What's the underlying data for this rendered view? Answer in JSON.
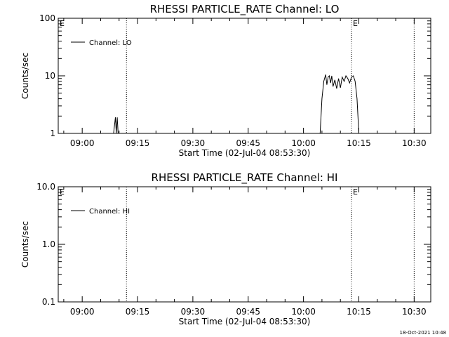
{
  "timestamp": "18-Oct-2021 10:48",
  "chart_data": [
    {
      "type": "line",
      "title": "RHESSI PARTICLE_RATE Channel: LO",
      "xlabel": "Start Time (02-Jul-04 08:53:30)",
      "ylabel": "Counts/sec",
      "yscale": "log",
      "xlim": [
        "08:53:30",
        "10:34:30"
      ],
      "ylim": [
        1,
        100
      ],
      "xticks": [
        "09:00",
        "09:15",
        "09:30",
        "09:45",
        "10:00",
        "10:15",
        "10:30"
      ],
      "yticks": [
        "1",
        "10",
        "100"
      ],
      "legend": {
        "position": "top-left",
        "entries": [
          "Channel: LO"
        ]
      },
      "vlines": [
        "09:12:00",
        "10:13:00",
        "10:30:00"
      ],
      "markers": [
        {
          "x": "08:53:30",
          "label": "E"
        },
        {
          "x": "10:13:00",
          "label": "E"
        }
      ],
      "series": [
        {
          "name": "Channel: LO",
          "points": [
            [
              "09:08:30",
              1.0
            ],
            [
              "09:09:00",
              1.9
            ],
            [
              "09:09:15",
              1.0
            ],
            [
              "09:09:30",
              1.9
            ],
            [
              "09:09:45",
              1.0
            ],
            [
              "10:04:30",
              1.0
            ],
            [
              "10:05:00",
              4.0
            ],
            [
              "10:05:30",
              8.0
            ],
            [
              "10:06:00",
              10.5
            ],
            [
              "10:06:20",
              7.0
            ],
            [
              "10:06:40",
              9.5
            ],
            [
              "10:07:00",
              10.0
            ],
            [
              "10:07:20",
              7.5
            ],
            [
              "10:07:40",
              10.0
            ],
            [
              "10:08:00",
              6.5
            ],
            [
              "10:08:30",
              8.5
            ],
            [
              "10:09:00",
              6.0
            ],
            [
              "10:09:30",
              9.0
            ],
            [
              "10:10:00",
              6.2
            ],
            [
              "10:10:30",
              9.5
            ],
            [
              "10:11:00",
              8.0
            ],
            [
              "10:11:30",
              10.0
            ],
            [
              "10:12:00",
              9.0
            ],
            [
              "10:12:30",
              7.5
            ],
            [
              "10:13:00",
              9.5
            ],
            [
              "10:13:30",
              10.0
            ],
            [
              "10:14:00",
              8.0
            ],
            [
              "10:14:30",
              4.0
            ],
            [
              "10:15:00",
              1.0
            ]
          ]
        }
      ]
    },
    {
      "type": "line",
      "title": "RHESSI PARTICLE_RATE Channel: HI",
      "xlabel": "Start Time (02-Jul-04 08:53:30)",
      "ylabel": "Counts/sec",
      "yscale": "log",
      "xlim": [
        "08:53:30",
        "10:34:30"
      ],
      "ylim": [
        0.1,
        10
      ],
      "xticks": [
        "09:00",
        "09:15",
        "09:30",
        "09:45",
        "10:00",
        "10:15",
        "10:30"
      ],
      "yticks": [
        "0.1",
        "1.0",
        "10.0"
      ],
      "legend": {
        "position": "top-left",
        "entries": [
          "Channel: HI"
        ]
      },
      "vlines": [
        "09:12:00",
        "10:13:00",
        "10:30:00"
      ],
      "markers": [
        {
          "x": "08:53:30",
          "label": "E"
        },
        {
          "x": "10:13:00",
          "label": "E"
        }
      ],
      "series": [
        {
          "name": "Channel: HI",
          "points": []
        }
      ]
    }
  ]
}
